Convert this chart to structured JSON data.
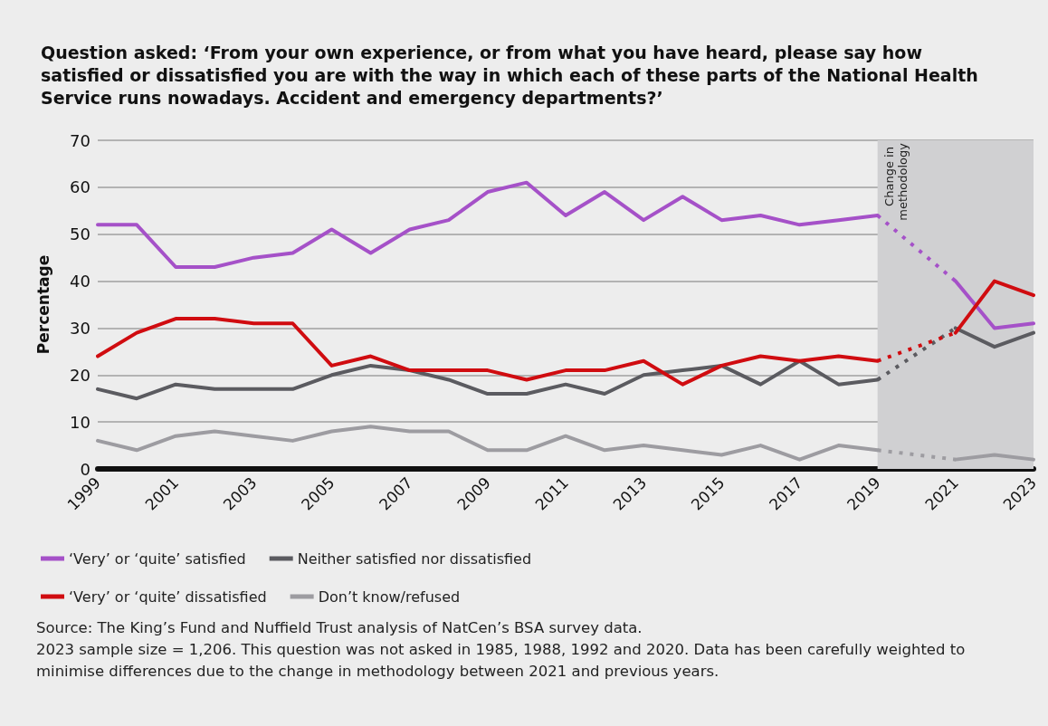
{
  "chart_data": {
    "type": "line",
    "title": "Question asked: ‘From your own experience, or from what you have heard, please say how satisfied or dissatisfied you are with the way in which each of these parts of the National Health Service runs nowadays. Accident and emergency departments?’",
    "ylabel": "Percentage",
    "x": [
      1999,
      2000,
      2001,
      2002,
      2003,
      2004,
      2005,
      2006,
      2007,
      2008,
      2009,
      2010,
      2011,
      2012,
      2013,
      2014,
      2015,
      2016,
      2017,
      2018,
      2019,
      2021,
      2022,
      2023
    ],
    "series": [
      {
        "name": "‘Very’ or ‘quite’ satisfied",
        "color": "#a551c8",
        "values": [
          52,
          52,
          43,
          43,
          45,
          46,
          51,
          46,
          51,
          53,
          59,
          61,
          54,
          59,
          53,
          58,
          53,
          54,
          52,
          53,
          54,
          40,
          30,
          31
        ]
      },
      {
        "name": "Neither satisfied nor dissatisfied",
        "color": "#5b5b60",
        "values": [
          17,
          15,
          18,
          17,
          17,
          17,
          20,
          22,
          21,
          19,
          16,
          16,
          18,
          16,
          20,
          21,
          22,
          18,
          23,
          18,
          19,
          30,
          26,
          29
        ]
      },
      {
        "name": "‘Very’ or ‘quite’ dissatisfied",
        "color": "#d00c10",
        "values": [
          24,
          29,
          32,
          32,
          31,
          31,
          22,
          24,
          21,
          21,
          21,
          19,
          21,
          21,
          23,
          18,
          22,
          24,
          23,
          24,
          23,
          29,
          40,
          37
        ]
      },
      {
        "name": "Don’t know/refused",
        "color": "#9d9ca1",
        "values": [
          6,
          4,
          7,
          8,
          7,
          6,
          8,
          9,
          8,
          8,
          4,
          4,
          7,
          4,
          5,
          4,
          3,
          5,
          2,
          5,
          4,
          2,
          3,
          2
        ]
      }
    ],
    "xlim": [
      1999,
      2023
    ],
    "xticks": [
      1999,
      2001,
      2003,
      2005,
      2007,
      2009,
      2011,
      2013,
      2015,
      2017,
      2019,
      2021,
      2023
    ],
    "ylim": [
      0,
      70
    ],
    "yticks": [
      0,
      10,
      20,
      30,
      40,
      50,
      60,
      70
    ],
    "bands": [
      {
        "axis": "x",
        "from": 2019,
        "to": 2023,
        "label": "Change in methodology",
        "color": "#d0d0d2"
      }
    ],
    "grid": "y",
    "legend": "bottom",
    "marker": "none",
    "line_style": "solid",
    "annotations": [
      "Source: The King’s Fund and Nuffield Trust analysis of NatCen’s BSA survey data.",
      "2023 sample size = 1,206. This question was not asked in 1985, 1988, 1992 and 2020. Data has been carefully weighted to minimise differences due to the change in methodology between 2021 and previous years."
    ]
  }
}
